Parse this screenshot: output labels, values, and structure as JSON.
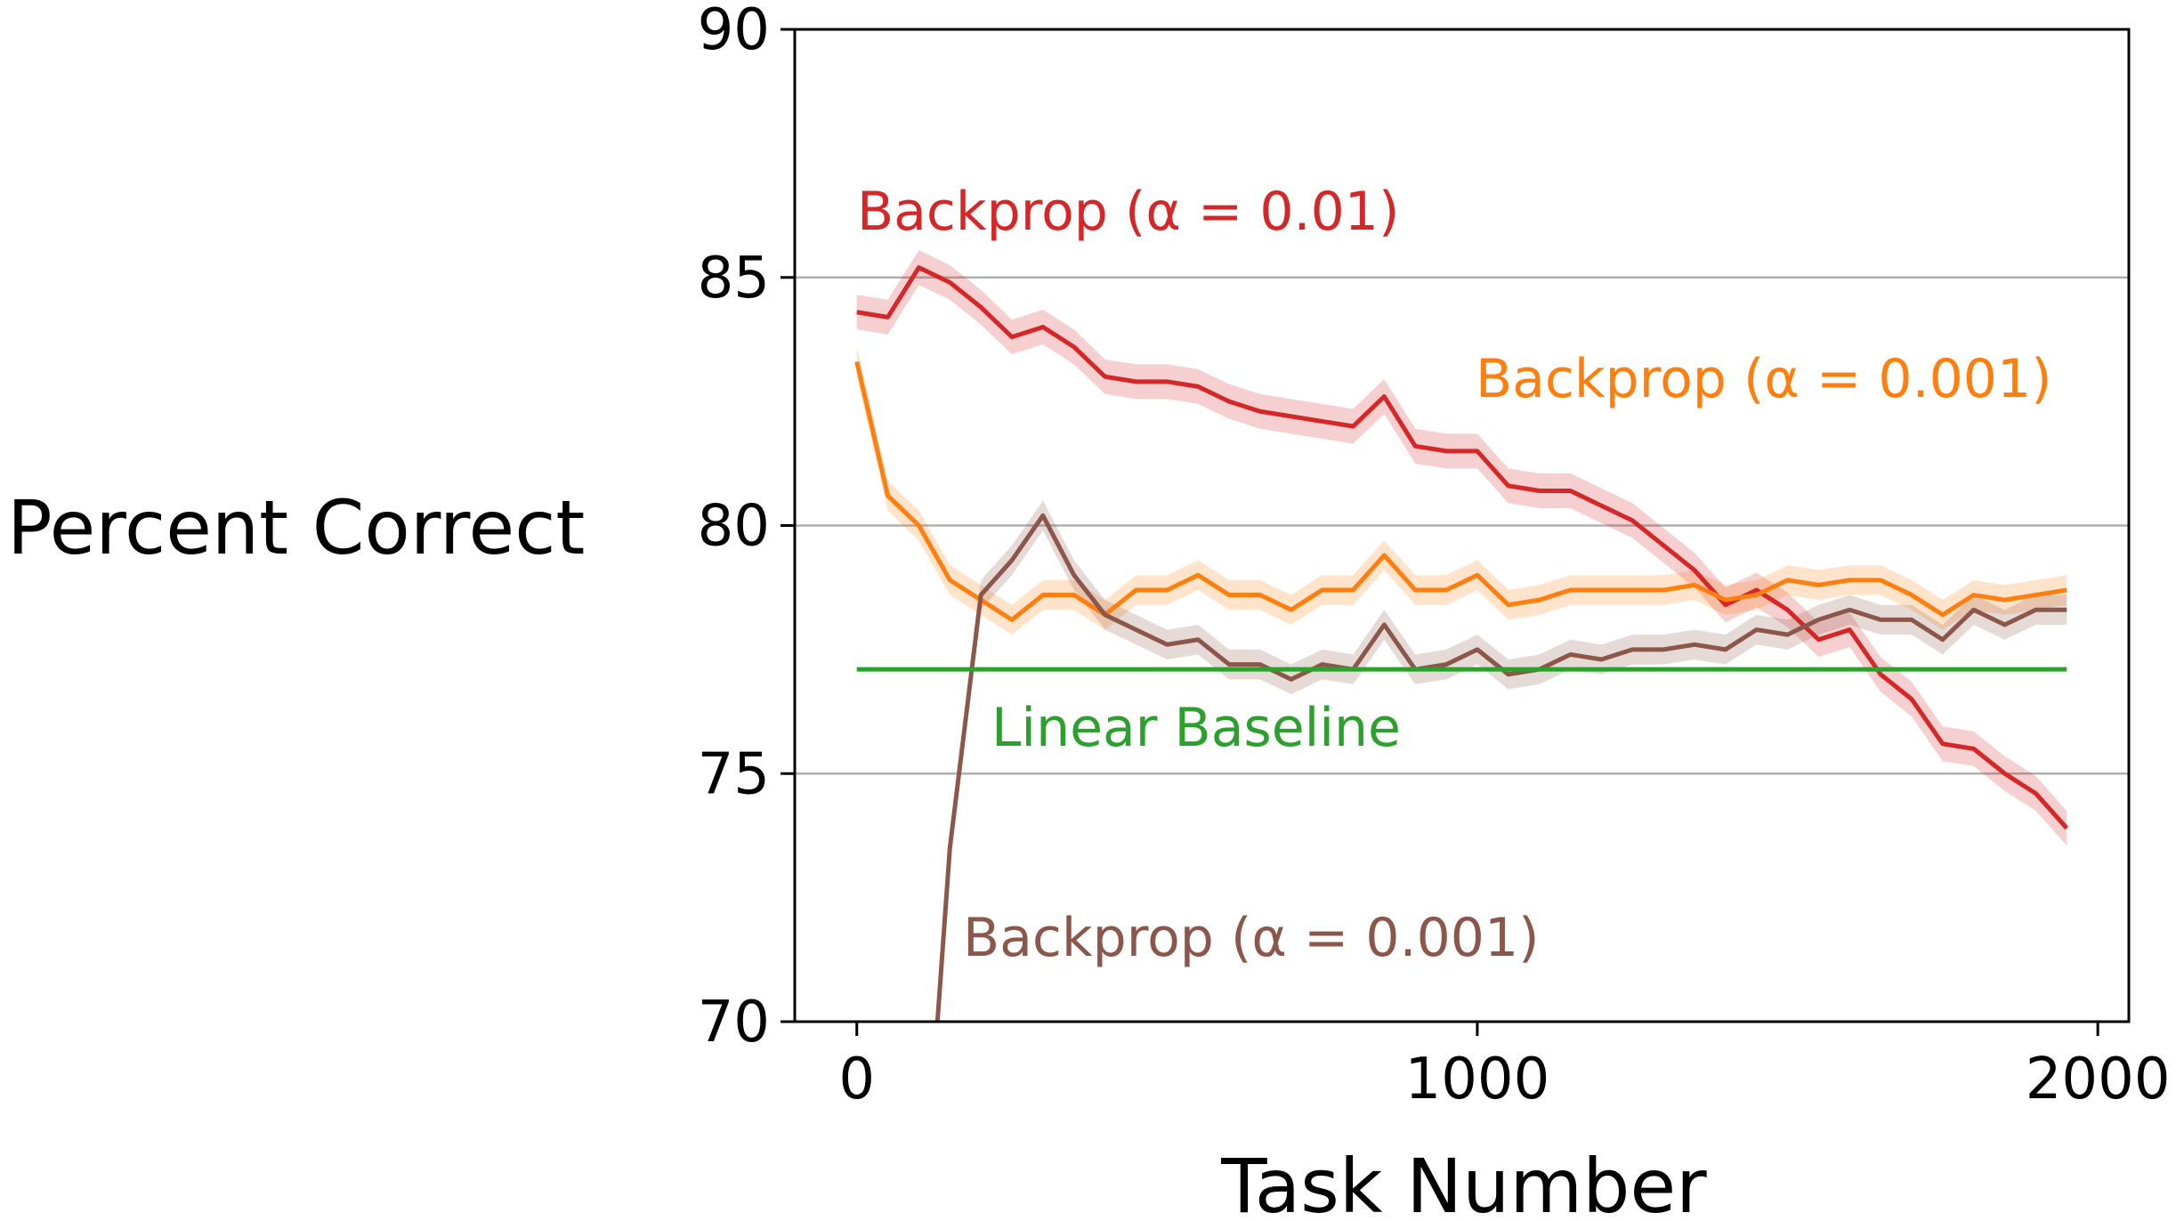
{
  "chart_data": {
    "type": "line",
    "title": "",
    "xlabel": "Task Number",
    "ylabel": "Percent Correct",
    "xlim": [
      -100,
      2050
    ],
    "ylim": [
      70,
      90
    ],
    "xticks": [
      0,
      1000,
      2000
    ],
    "yticks": [
      70,
      75,
      80,
      85,
      90
    ],
    "grid": "horizontal at 75, 80, 85",
    "series": [
      {
        "name": "Backprop (α = 0.01)",
        "color": "#d62728",
        "x": [
          0,
          50,
          100,
          150,
          200,
          250,
          300,
          350,
          400,
          450,
          500,
          550,
          600,
          650,
          700,
          750,
          800,
          850,
          900,
          950,
          1000,
          1050,
          1100,
          1150,
          1200,
          1250,
          1300,
          1350,
          1400,
          1450,
          1500,
          1550,
          1600,
          1650,
          1700,
          1750,
          1800,
          1850,
          1900,
          1950
        ],
        "y": [
          84.3,
          84.2,
          85.2,
          84.9,
          84.4,
          83.8,
          84.0,
          83.6,
          83.0,
          82.9,
          82.9,
          82.8,
          82.5,
          82.3,
          82.2,
          82.1,
          82.0,
          82.6,
          81.6,
          81.5,
          81.5,
          80.8,
          80.7,
          80.7,
          80.4,
          80.1,
          79.6,
          79.1,
          78.4,
          78.7,
          78.3,
          77.7,
          77.9,
          77.0,
          76.5,
          75.6,
          75.5,
          75.0,
          74.6,
          73.9
        ],
        "band": 0.35
      },
      {
        "name": "Backprop (α = 0.001)",
        "color": "#ff7f0e",
        "x": [
          0,
          50,
          100,
          150,
          200,
          250,
          300,
          350,
          400,
          450,
          500,
          550,
          600,
          650,
          700,
          750,
          800,
          850,
          900,
          950,
          1000,
          1050,
          1100,
          1150,
          1200,
          1250,
          1300,
          1350,
          1400,
          1450,
          1500,
          1550,
          1600,
          1650,
          1700,
          1750,
          1800,
          1850,
          1900,
          1950
        ],
        "y": [
          83.3,
          80.6,
          80.0,
          78.9,
          78.5,
          78.1,
          78.6,
          78.6,
          78.2,
          78.7,
          78.7,
          79.0,
          78.6,
          78.6,
          78.3,
          78.7,
          78.7,
          79.4,
          78.7,
          78.7,
          79.0,
          78.4,
          78.5,
          78.7,
          78.7,
          78.7,
          78.7,
          78.8,
          78.5,
          78.6,
          78.9,
          78.8,
          78.9,
          78.9,
          78.6,
          78.2,
          78.6,
          78.5,
          78.6,
          78.7
        ],
        "band": 0.3
      },
      {
        "name": "Backprop (α = 0.001)",
        "color": "#8c564b",
        "x": [
          130,
          150,
          200,
          250,
          300,
          350,
          400,
          450,
          500,
          550,
          600,
          650,
          700,
          750,
          800,
          850,
          900,
          950,
          1000,
          1050,
          1100,
          1150,
          1200,
          1250,
          1300,
          1350,
          1400,
          1450,
          1500,
          1550,
          1600,
          1650,
          1700,
          1750,
          1800,
          1850,
          1900,
          1950
        ],
        "y": [
          70.0,
          73.5,
          78.6,
          79.3,
          80.2,
          79.0,
          78.2,
          77.9,
          77.6,
          77.7,
          77.2,
          77.2,
          76.9,
          77.2,
          77.1,
          78.0,
          77.1,
          77.2,
          77.5,
          77.0,
          77.1,
          77.4,
          77.3,
          77.5,
          77.5,
          77.6,
          77.5,
          77.9,
          77.8,
          78.1,
          78.3,
          78.1,
          78.1,
          77.7,
          78.3,
          78.0,
          78.3,
          78.3
        ],
        "band": 0.3
      },
      {
        "name": "Linear Baseline",
        "color": "#2ca02c",
        "x": [
          0,
          1950
        ],
        "y": [
          77.1,
          77.1
        ],
        "band": 0
      }
    ]
  }
}
